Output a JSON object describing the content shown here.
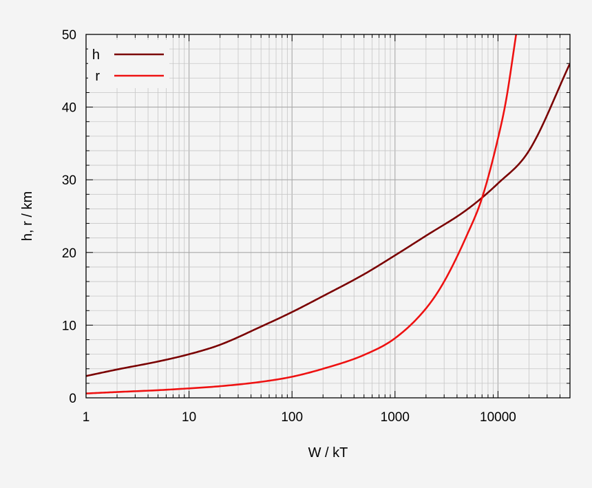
{
  "chart_data": {
    "type": "line",
    "title": "",
    "xlabel": "W / kT",
    "ylabel": "h, r / km",
    "xscale": "log",
    "xlim": [
      1,
      50000
    ],
    "ylim": [
      0,
      50
    ],
    "x_ticks": [
      1,
      10,
      100,
      1000,
      10000
    ],
    "x_tick_labels": [
      "1",
      "10",
      "100",
      "1000",
      "10000"
    ],
    "y_ticks": [
      0,
      10,
      20,
      30,
      40,
      50
    ],
    "y_tick_labels": [
      "0",
      "10",
      "20",
      "30",
      "40",
      "50"
    ],
    "grid": true,
    "legend_position": "top-left",
    "series": [
      {
        "name": "h",
        "color": "#7a0000",
        "x": [
          1,
          2,
          5,
          10,
          20,
          50,
          100,
          200,
          500,
          1000,
          2000,
          5000,
          10000,
          20000,
          50000
        ],
        "y": [
          3.0,
          3.9,
          5.0,
          6.0,
          7.3,
          9.8,
          11.8,
          14.0,
          17.0,
          19.6,
          22.3,
          25.9,
          29.5,
          34.0,
          46.0
        ]
      },
      {
        "name": "r",
        "color": "#ee1111",
        "x": [
          1,
          2,
          5,
          10,
          20,
          50,
          100,
          200,
          500,
          1000,
          2000,
          3000,
          5000,
          7000,
          10000,
          12000,
          15000
        ],
        "y": [
          0.6,
          0.8,
          1.05,
          1.3,
          1.6,
          2.2,
          2.9,
          4.0,
          5.9,
          8.2,
          12.3,
          16.0,
          22.4,
          27.5,
          35.7,
          41.0,
          50.0
        ]
      }
    ]
  }
}
